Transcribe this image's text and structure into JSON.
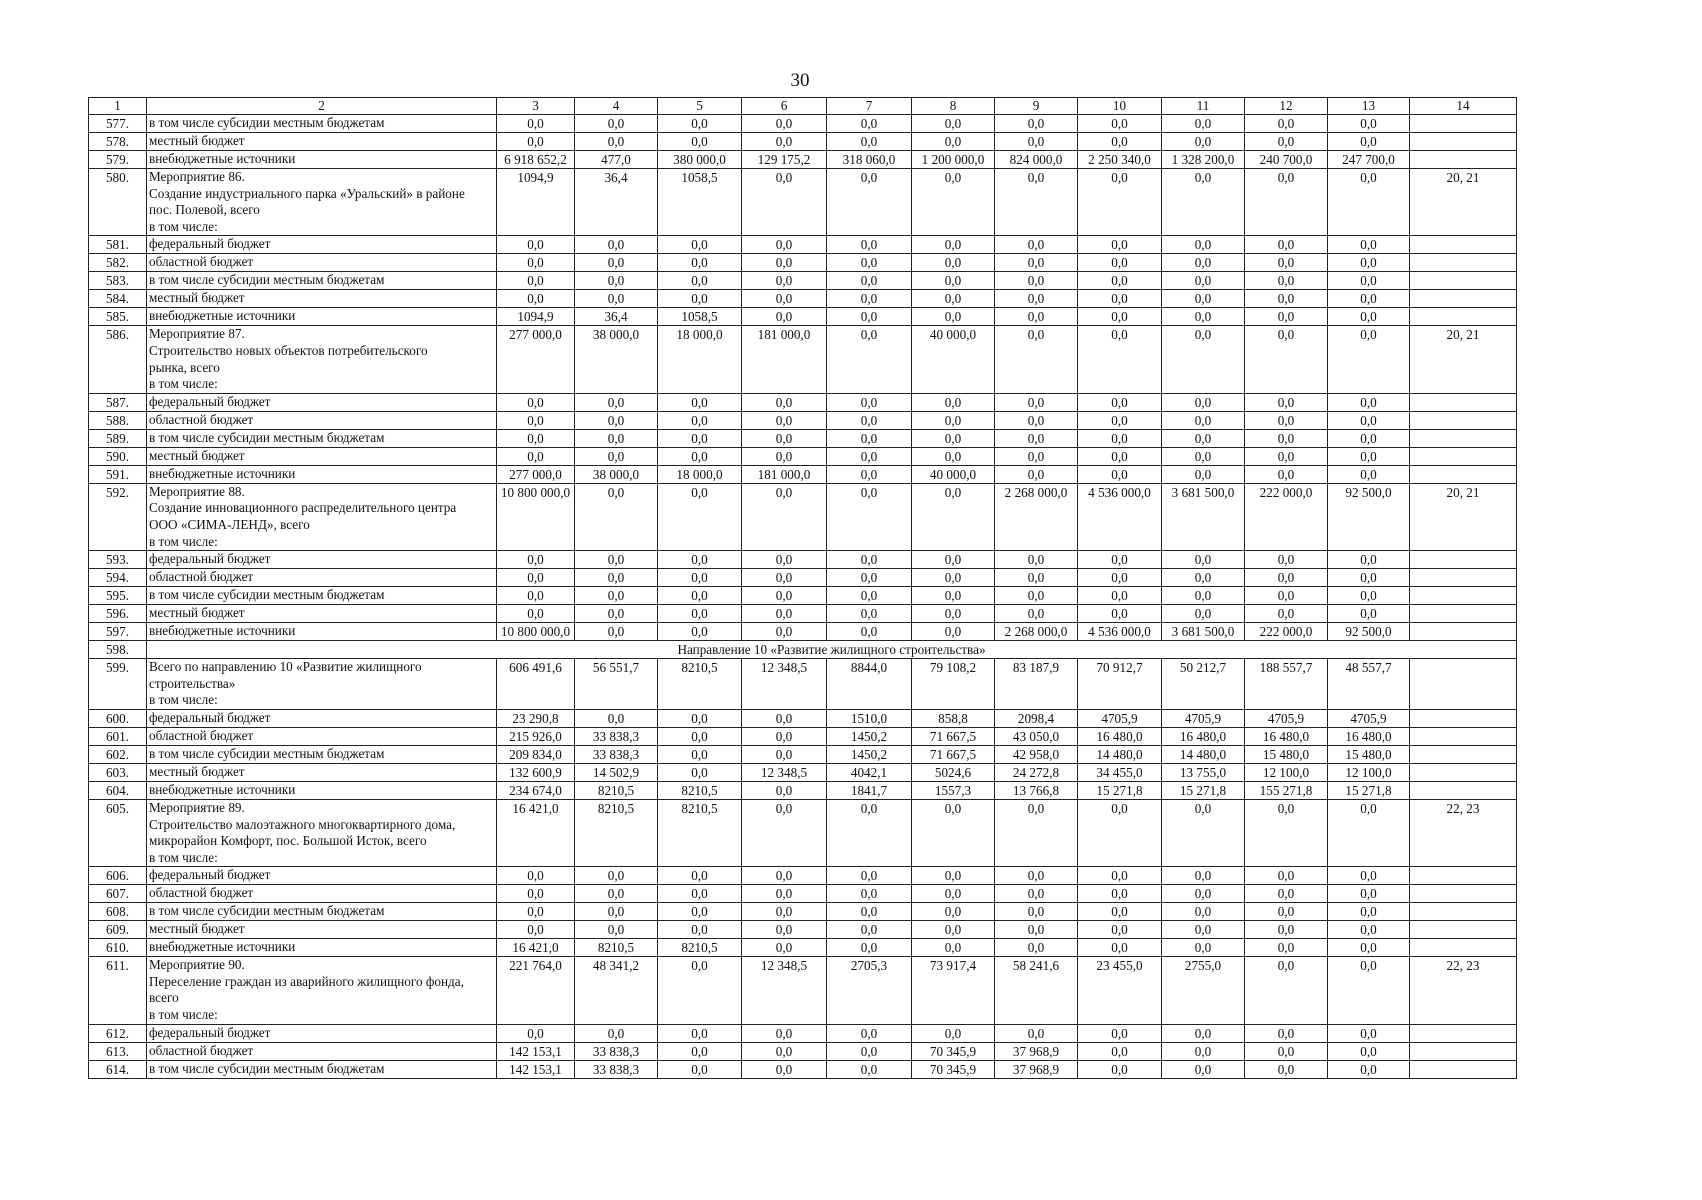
{
  "page_number": "30",
  "columns": [
    "1",
    "2",
    "3",
    "4",
    "5",
    "6",
    "7",
    "8",
    "9",
    "10",
    "11",
    "12",
    "13",
    "14"
  ],
  "rows": [
    {
      "n": "577.",
      "name": "в том числе субсидии местным бюджетам",
      "vals": [
        "0,0",
        "0,0",
        "0,0",
        "0,0",
        "0,0",
        "0,0",
        "0,0",
        "0,0",
        "0,0",
        "0,0",
        "0,0"
      ],
      "ref": ""
    },
    {
      "n": "578.",
      "name": "местный бюджет",
      "vals": [
        "0,0",
        "0,0",
        "0,0",
        "0,0",
        "0,0",
        "0,0",
        "0,0",
        "0,0",
        "0,0",
        "0,0",
        "0,0"
      ],
      "ref": ""
    },
    {
      "n": "579.",
      "name": "внебюджетные источники",
      "vals": [
        "6 918 652,2",
        "477,0",
        "380 000,0",
        "129 175,2",
        "318 060,0",
        "1 200 000,0",
        "824 000,0",
        "2 250 340,0",
        "1 328 200,0",
        "240 700,0",
        "247 700,0"
      ],
      "ref": ""
    },
    {
      "n": "580.",
      "name": "Мероприятие 86.\nСоздание индустриального парка «Уральский» в районе\nпос. Полевой, всего\nв том числе:",
      "vals": [
        "1094,9",
        "36,4",
        "1058,5",
        "0,0",
        "0,0",
        "0,0",
        "0,0",
        "0,0",
        "0,0",
        "0,0",
        "0,0"
      ],
      "ref": "20, 21"
    },
    {
      "n": "581.",
      "name": "федеральный бюджет",
      "vals": [
        "0,0",
        "0,0",
        "0,0",
        "0,0",
        "0,0",
        "0,0",
        "0,0",
        "0,0",
        "0,0",
        "0,0",
        "0,0"
      ],
      "ref": ""
    },
    {
      "n": "582.",
      "name": "областной бюджет",
      "vals": [
        "0,0",
        "0,0",
        "0,0",
        "0,0",
        "0,0",
        "0,0",
        "0,0",
        "0,0",
        "0,0",
        "0,0",
        "0,0"
      ],
      "ref": ""
    },
    {
      "n": "583.",
      "name": "в том числе субсидии местным бюджетам",
      "vals": [
        "0,0",
        "0,0",
        "0,0",
        "0,0",
        "0,0",
        "0,0",
        "0,0",
        "0,0",
        "0,0",
        "0,0",
        "0,0"
      ],
      "ref": ""
    },
    {
      "n": "584.",
      "name": "местный бюджет",
      "vals": [
        "0,0",
        "0,0",
        "0,0",
        "0,0",
        "0,0",
        "0,0",
        "0,0",
        "0,0",
        "0,0",
        "0,0",
        "0,0"
      ],
      "ref": ""
    },
    {
      "n": "585.",
      "name": "внебюджетные источники",
      "vals": [
        "1094,9",
        "36,4",
        "1058,5",
        "0,0",
        "0,0",
        "0,0",
        "0,0",
        "0,0",
        "0,0",
        "0,0",
        "0,0"
      ],
      "ref": ""
    },
    {
      "n": "586.",
      "name": "Мероприятие 87.\nСтроительство новых объектов потребительского\nрынка, всего\nв том числе:",
      "vals": [
        "277 000,0",
        "38 000,0",
        "18 000,0",
        "181 000,0",
        "0,0",
        "40 000,0",
        "0,0",
        "0,0",
        "0,0",
        "0,0",
        "0,0"
      ],
      "ref": "20, 21"
    },
    {
      "n": "587.",
      "name": "федеральный бюджет",
      "vals": [
        "0,0",
        "0,0",
        "0,0",
        "0,0",
        "0,0",
        "0,0",
        "0,0",
        "0,0",
        "0,0",
        "0,0",
        "0,0"
      ],
      "ref": ""
    },
    {
      "n": "588.",
      "name": "областной бюджет",
      "vals": [
        "0,0",
        "0,0",
        "0,0",
        "0,0",
        "0,0",
        "0,0",
        "0,0",
        "0,0",
        "0,0",
        "0,0",
        "0,0"
      ],
      "ref": ""
    },
    {
      "n": "589.",
      "name": "в том числе субсидии местным бюджетам",
      "vals": [
        "0,0",
        "0,0",
        "0,0",
        "0,0",
        "0,0",
        "0,0",
        "0,0",
        "0,0",
        "0,0",
        "0,0",
        "0,0"
      ],
      "ref": ""
    },
    {
      "n": "590.",
      "name": "местный бюджет",
      "vals": [
        "0,0",
        "0,0",
        "0,0",
        "0,0",
        "0,0",
        "0,0",
        "0,0",
        "0,0",
        "0,0",
        "0,0",
        "0,0"
      ],
      "ref": ""
    },
    {
      "n": "591.",
      "name": "внебюджетные источники",
      "vals": [
        "277 000,0",
        "38 000,0",
        "18 000,0",
        "181 000,0",
        "0,0",
        "40 000,0",
        "0,0",
        "0,0",
        "0,0",
        "0,0",
        "0,0"
      ],
      "ref": ""
    },
    {
      "n": "592.",
      "name": "Мероприятие 88.\nСоздание инновационного распределительного центра\nООО «СИМА-ЛЕНД», всего\nв том числе:",
      "vals": [
        "10 800 000,0",
        "0,0",
        "0,0",
        "0,0",
        "0,0",
        "0,0",
        "2 268 000,0",
        "4 536 000,0",
        "3 681 500,0",
        "222 000,0",
        "92 500,0"
      ],
      "ref": "20, 21"
    },
    {
      "n": "593.",
      "name": "федеральный бюджет",
      "vals": [
        "0,0",
        "0,0",
        "0,0",
        "0,0",
        "0,0",
        "0,0",
        "0,0",
        "0,0",
        "0,0",
        "0,0",
        "0,0"
      ],
      "ref": ""
    },
    {
      "n": "594.",
      "name": "областной бюджет",
      "vals": [
        "0,0",
        "0,0",
        "0,0",
        "0,0",
        "0,0",
        "0,0",
        "0,0",
        "0,0",
        "0,0",
        "0,0",
        "0,0"
      ],
      "ref": ""
    },
    {
      "n": "595.",
      "name": "в том числе субсидии местным бюджетам",
      "vals": [
        "0,0",
        "0,0",
        "0,0",
        "0,0",
        "0,0",
        "0,0",
        "0,0",
        "0,0",
        "0,0",
        "0,0",
        "0,0"
      ],
      "ref": ""
    },
    {
      "n": "596.",
      "name": "местный бюджет",
      "vals": [
        "0,0",
        "0,0",
        "0,0",
        "0,0",
        "0,0",
        "0,0",
        "0,0",
        "0,0",
        "0,0",
        "0,0",
        "0,0"
      ],
      "ref": ""
    },
    {
      "n": "597.",
      "name": "внебюджетные источники",
      "vals": [
        "10 800 000,0",
        "0,0",
        "0,0",
        "0,0",
        "0,0",
        "0,0",
        "2 268 000,0",
        "4 536 000,0",
        "3 681 500,0",
        "222 000,0",
        "92 500,0"
      ],
      "ref": ""
    },
    {
      "n": "598.",
      "section": "Направление 10 «Развитие жилищного строительства»"
    },
    {
      "n": "599.",
      "name": "Всего по направлению 10 «Развитие жилищного\nстроительства»\nв том числе:",
      "vals": [
        "606 491,6",
        "56 551,7",
        "8210,5",
        "12 348,5",
        "8844,0",
        "79 108,2",
        "83 187,9",
        "70 912,7",
        "50 212,7",
        "188 557,7",
        "48 557,7"
      ],
      "ref": ""
    },
    {
      "n": "600.",
      "name": "федеральный бюджет",
      "vals": [
        "23 290,8",
        "0,0",
        "0,0",
        "0,0",
        "1510,0",
        "858,8",
        "2098,4",
        "4705,9",
        "4705,9",
        "4705,9",
        "4705,9"
      ],
      "ref": ""
    },
    {
      "n": "601.",
      "name": "областной бюджет",
      "vals": [
        "215 926,0",
        "33 838,3",
        "0,0",
        "0,0",
        "1450,2",
        "71 667,5",
        "43 050,0",
        "16 480,0",
        "16 480,0",
        "16 480,0",
        "16 480,0"
      ],
      "ref": ""
    },
    {
      "n": "602.",
      "name": "в том числе субсидии местным бюджетам",
      "vals": [
        "209 834,0",
        "33 838,3",
        "0,0",
        "0,0",
        "1450,2",
        "71 667,5",
        "42 958,0",
        "14 480,0",
        "14 480,0",
        "15 480,0",
        "15 480,0"
      ],
      "ref": ""
    },
    {
      "n": "603.",
      "name": "местный бюджет",
      "vals": [
        "132 600,9",
        "14 502,9",
        "0,0",
        "12 348,5",
        "4042,1",
        "5024,6",
        "24 272,8",
        "34 455,0",
        "13 755,0",
        "12 100,0",
        "12 100,0"
      ],
      "ref": ""
    },
    {
      "n": "604.",
      "name": "внебюджетные источники",
      "vals": [
        "234 674,0",
        "8210,5",
        "8210,5",
        "0,0",
        "1841,7",
        "1557,3",
        "13 766,8",
        "15 271,8",
        "15 271,8",
        "155 271,8",
        "15 271,8"
      ],
      "ref": ""
    },
    {
      "n": "605.",
      "name": "Мероприятие 89.\nСтроительство малоэтажного многоквартирного дома,\nмикрорайон Комфорт, пос. Большой Исток, всего\nв том числе:",
      "vals": [
        "16 421,0",
        "8210,5",
        "8210,5",
        "0,0",
        "0,0",
        "0,0",
        "0,0",
        "0,0",
        "0,0",
        "0,0",
        "0,0"
      ],
      "ref": "22, 23"
    },
    {
      "n": "606.",
      "name": "федеральный бюджет",
      "vals": [
        "0,0",
        "0,0",
        "0,0",
        "0,0",
        "0,0",
        "0,0",
        "0,0",
        "0,0",
        "0,0",
        "0,0",
        "0,0"
      ],
      "ref": ""
    },
    {
      "n": "607.",
      "name": "областной бюджет",
      "vals": [
        "0,0",
        "0,0",
        "0,0",
        "0,0",
        "0,0",
        "0,0",
        "0,0",
        "0,0",
        "0,0",
        "0,0",
        "0,0"
      ],
      "ref": ""
    },
    {
      "n": "608.",
      "name": "в том числе субсидии местным бюджетам",
      "vals": [
        "0,0",
        "0,0",
        "0,0",
        "0,0",
        "0,0",
        "0,0",
        "0,0",
        "0,0",
        "0,0",
        "0,0",
        "0,0"
      ],
      "ref": ""
    },
    {
      "n": "609.",
      "name": "местный бюджет",
      "vals": [
        "0,0",
        "0,0",
        "0,0",
        "0,0",
        "0,0",
        "0,0",
        "0,0",
        "0,0",
        "0,0",
        "0,0",
        "0,0"
      ],
      "ref": ""
    },
    {
      "n": "610.",
      "name": "внебюджетные источники",
      "vals": [
        "16 421,0",
        "8210,5",
        "8210,5",
        "0,0",
        "0,0",
        "0,0",
        "0,0",
        "0,0",
        "0,0",
        "0,0",
        "0,0"
      ],
      "ref": ""
    },
    {
      "n": "611.",
      "name": "Мероприятие 90.\nПереселение граждан из аварийного жилищного фонда,\nвсего\nв том числе:",
      "vals": [
        "221 764,0",
        "48 341,2",
        "0,0",
        "12 348,5",
        "2705,3",
        "73 917,4",
        "58 241,6",
        "23 455,0",
        "2755,0",
        "0,0",
        "0,0"
      ],
      "ref": "22, 23"
    },
    {
      "n": "612.",
      "name": "федеральный бюджет",
      "vals": [
        "0,0",
        "0,0",
        "0,0",
        "0,0",
        "0,0",
        "0,0",
        "0,0",
        "0,0",
        "0,0",
        "0,0",
        "0,0"
      ],
      "ref": ""
    },
    {
      "n": "613.",
      "name": "областной бюджет",
      "vals": [
        "142 153,1",
        "33 838,3",
        "0,0",
        "0,0",
        "0,0",
        "70 345,9",
        "37 968,9",
        "0,0",
        "0,0",
        "0,0",
        "0,0"
      ],
      "ref": ""
    },
    {
      "n": "614.",
      "name": "в том числе субсидии местным бюджетам",
      "vals": [
        "142 153,1",
        "33 838,3",
        "0,0",
        "0,0",
        "0,0",
        "70 345,9",
        "37 968,9",
        "0,0",
        "0,0",
        "0,0",
        "0,0"
      ],
      "ref": ""
    }
  ]
}
